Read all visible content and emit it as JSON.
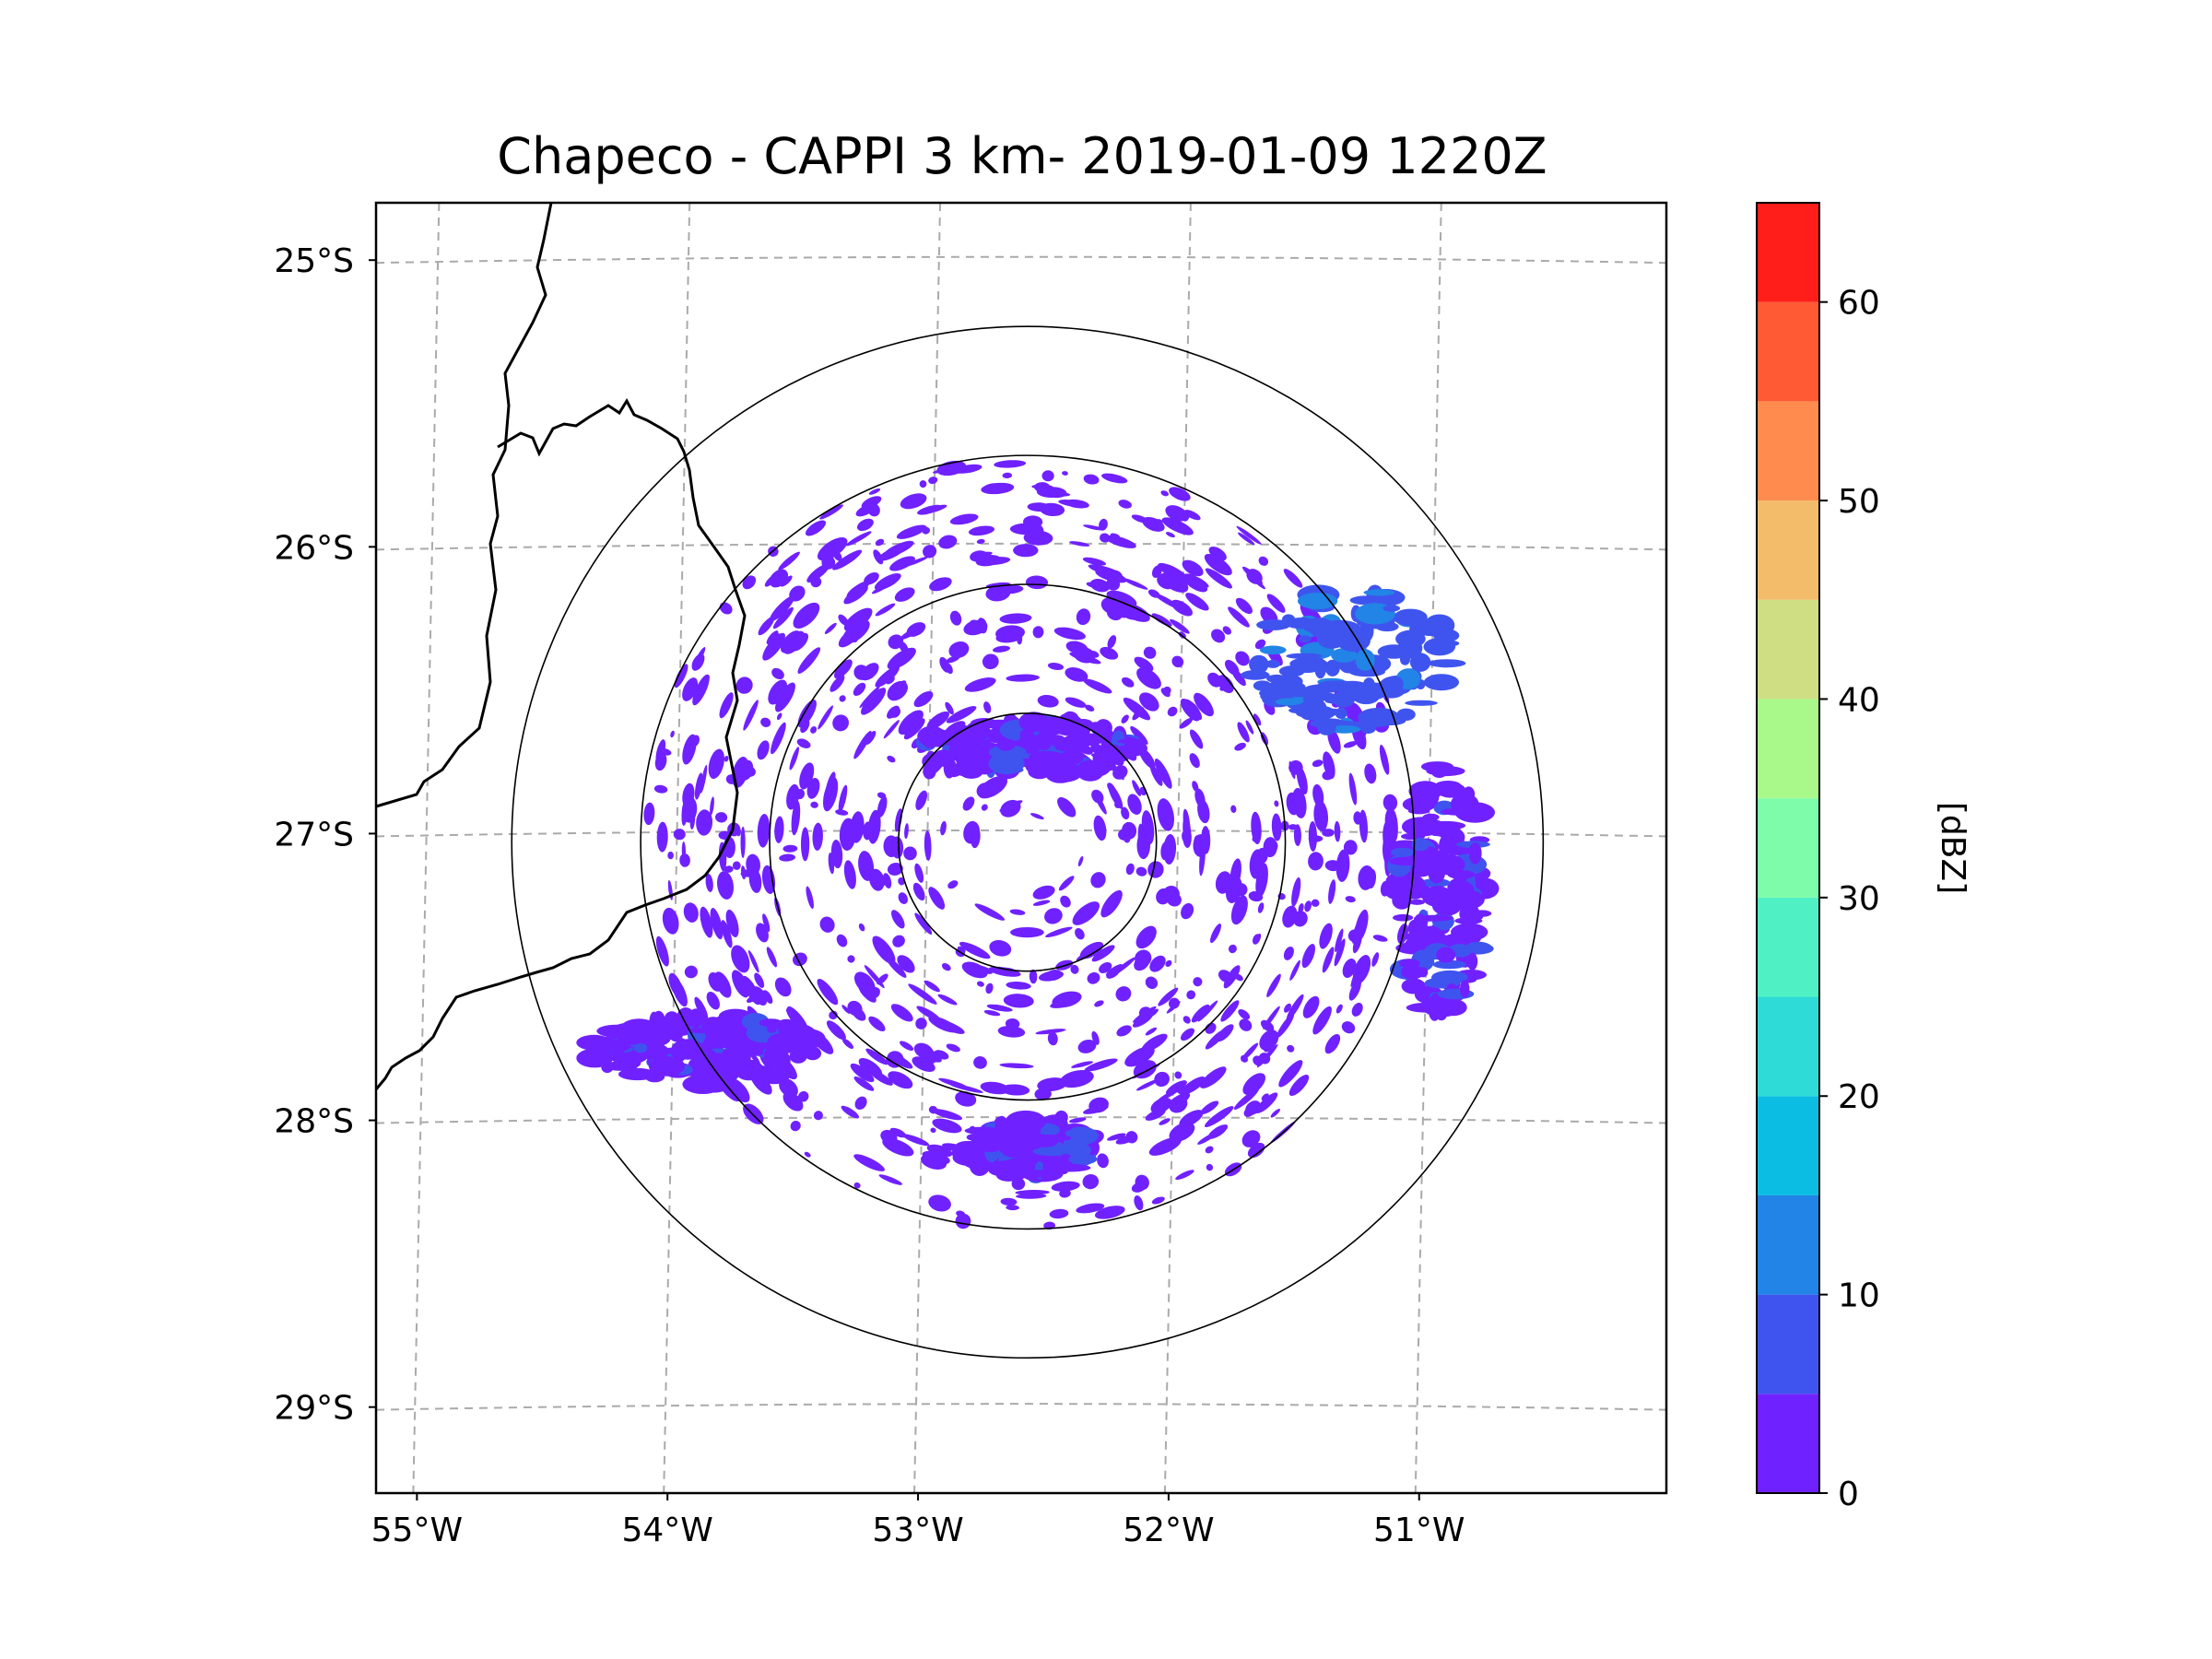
{
  "chart_data": {
    "type": "heatmap",
    "title": "Chapeco - CAPPI 3 km- 2019-01-09 1220Z",
    "station": "Chapeco",
    "product": "CAPPI 3 km",
    "datetime": "2019-01-09 1220Z",
    "lon_ticks": [
      {
        "value": -55,
        "label": "55°W"
      },
      {
        "value": -54,
        "label": "54°W"
      },
      {
        "value": -53,
        "label": "53°W"
      },
      {
        "value": -52,
        "label": "52°W"
      },
      {
        "value": -51,
        "label": "51°W"
      }
    ],
    "lat_ticks": [
      {
        "value": -25,
        "label": "25°S"
      },
      {
        "value": -26,
        "label": "26°S"
      },
      {
        "value": -27,
        "label": "27°S"
      },
      {
        "value": -28,
        "label": "28°S"
      },
      {
        "value": -29,
        "label": "29°S"
      }
    ],
    "xlim": [
      -55.2,
      -50.05
    ],
    "ylim": [
      -29.3,
      -24.8
    ],
    "radar_center": {
      "lon": -52.6,
      "lat": -27.03
    },
    "range_rings_km": [
      50,
      100,
      150,
      200
    ],
    "colorbar": {
      "label": "[dBZ]",
      "min": 0,
      "max": 65,
      "tick_values": [
        0,
        10,
        20,
        30,
        40,
        50,
        60
      ],
      "tick_labels": [
        "0",
        "10",
        "20",
        "30",
        "40",
        "50",
        "60"
      ],
      "levels": [
        {
          "from": 0,
          "to": 5,
          "color": "#7021ff"
        },
        {
          "from": 5,
          "to": 10,
          "color": "#3f54ef"
        },
        {
          "from": 10,
          "to": 15,
          "color": "#2284e6"
        },
        {
          "from": 15,
          "to": 20,
          "color": "#0bbde3"
        },
        {
          "from": 20,
          "to": 25,
          "color": "#2edbd7"
        },
        {
          "from": 25,
          "to": 30,
          "color": "#4ff1c4"
        },
        {
          "from": 30,
          "to": 35,
          "color": "#7efcaa"
        },
        {
          "from": 35,
          "to": 40,
          "color": "#a9f98a"
        },
        {
          "from": 40,
          "to": 45,
          "color": "#cfdd83"
        },
        {
          "from": 45,
          "to": 50,
          "color": "#f2bc6b"
        },
        {
          "from": 50,
          "to": 55,
          "color": "#ff8c4e"
        },
        {
          "from": 55,
          "to": 60,
          "color": "#ff5a34"
        },
        {
          "from": 60,
          "to": 65,
          "color": "#ff1e1a"
        }
      ]
    },
    "echo_regions": [
      {
        "name": "west-band",
        "lon": -53.9,
        "lat": -27.75,
        "extent_lon": 0.9,
        "extent_lat": 0.25,
        "dbz": 0
      },
      {
        "name": "east-band",
        "lon": -50.95,
        "lat": -27.2,
        "extent_lon": 0.35,
        "extent_lat": 0.9,
        "dbz": 0
      },
      {
        "name": "northeast-cells",
        "lon": -51.3,
        "lat": -26.4,
        "extent_lon": 0.8,
        "extent_lat": 0.5,
        "dbz": 5
      },
      {
        "name": "south-cluster",
        "lon": -52.6,
        "lat": -28.1,
        "extent_lon": 0.5,
        "extent_lat": 0.2,
        "dbz": 0
      },
      {
        "name": "inner-arc",
        "lon": -52.6,
        "lat": -26.7,
        "extent_lon": 0.9,
        "extent_lat": 0.2,
        "dbz": 0
      }
    ],
    "colors": {
      "base_echo": "#7021ff",
      "grid": "#aaaaaa",
      "ring": "#000000",
      "border": "#000000"
    }
  }
}
